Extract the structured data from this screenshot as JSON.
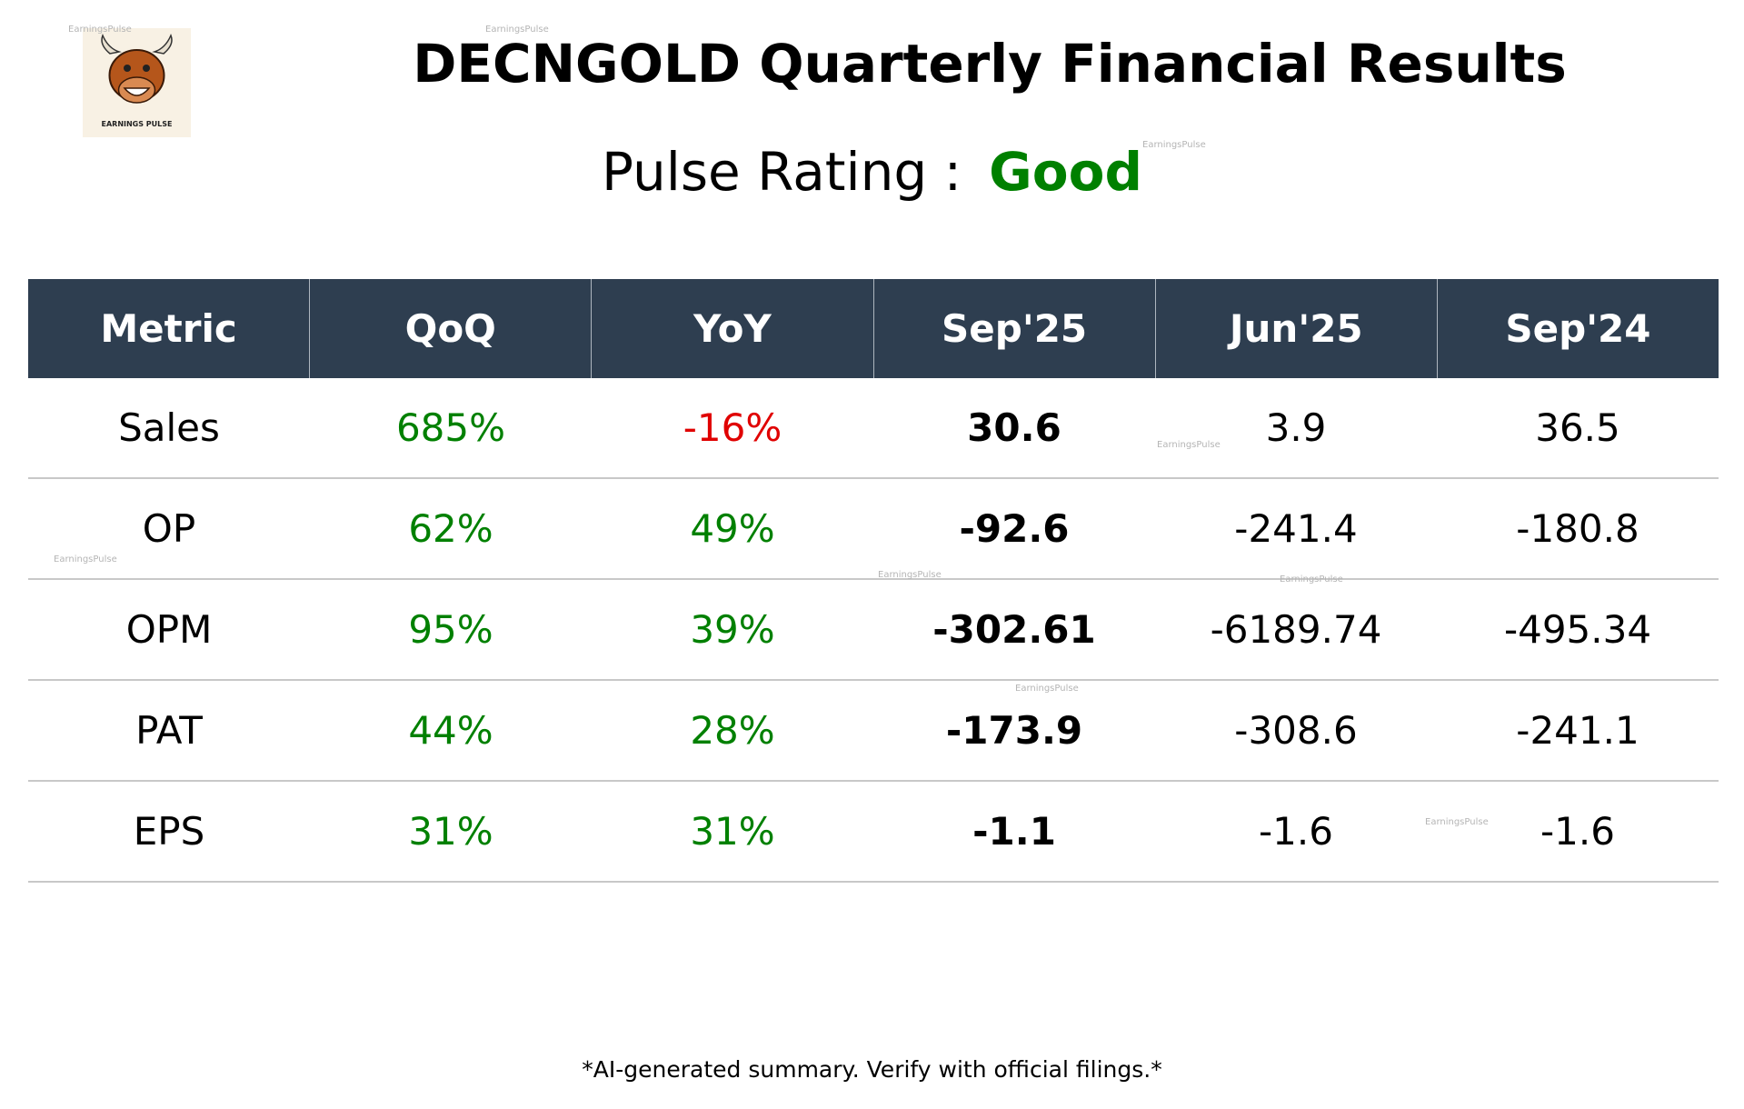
{
  "header": {
    "title": "DECNGOLD Quarterly Financial Results",
    "rating_label": "Pulse Rating :",
    "rating": "Good",
    "logo_text": "EARNINGS PULSE"
  },
  "watermark": "EarningsPulse",
  "table": {
    "columns": [
      "Metric",
      "QoQ",
      "YoY",
      "Sep'25",
      "Jun'25",
      "Sep'24"
    ],
    "rows": [
      [
        "Sales",
        "685%",
        "-16%",
        "30.6",
        "3.9",
        "36.5"
      ],
      [
        "OP",
        "62%",
        "49%",
        "-92.6",
        "-241.4",
        "-180.8"
      ],
      [
        "OPM",
        "95%",
        "39%",
        "-302.61",
        "-6189.74",
        "-495.34"
      ],
      [
        "PAT",
        "44%",
        "28%",
        "-173.9",
        "-308.6",
        "-241.1"
      ],
      [
        "EPS",
        "31%",
        "31%",
        "-1.1",
        "-1.6",
        "-1.6"
      ]
    ]
  },
  "footer": "*AI-generated summary. Verify with official filings.*"
}
